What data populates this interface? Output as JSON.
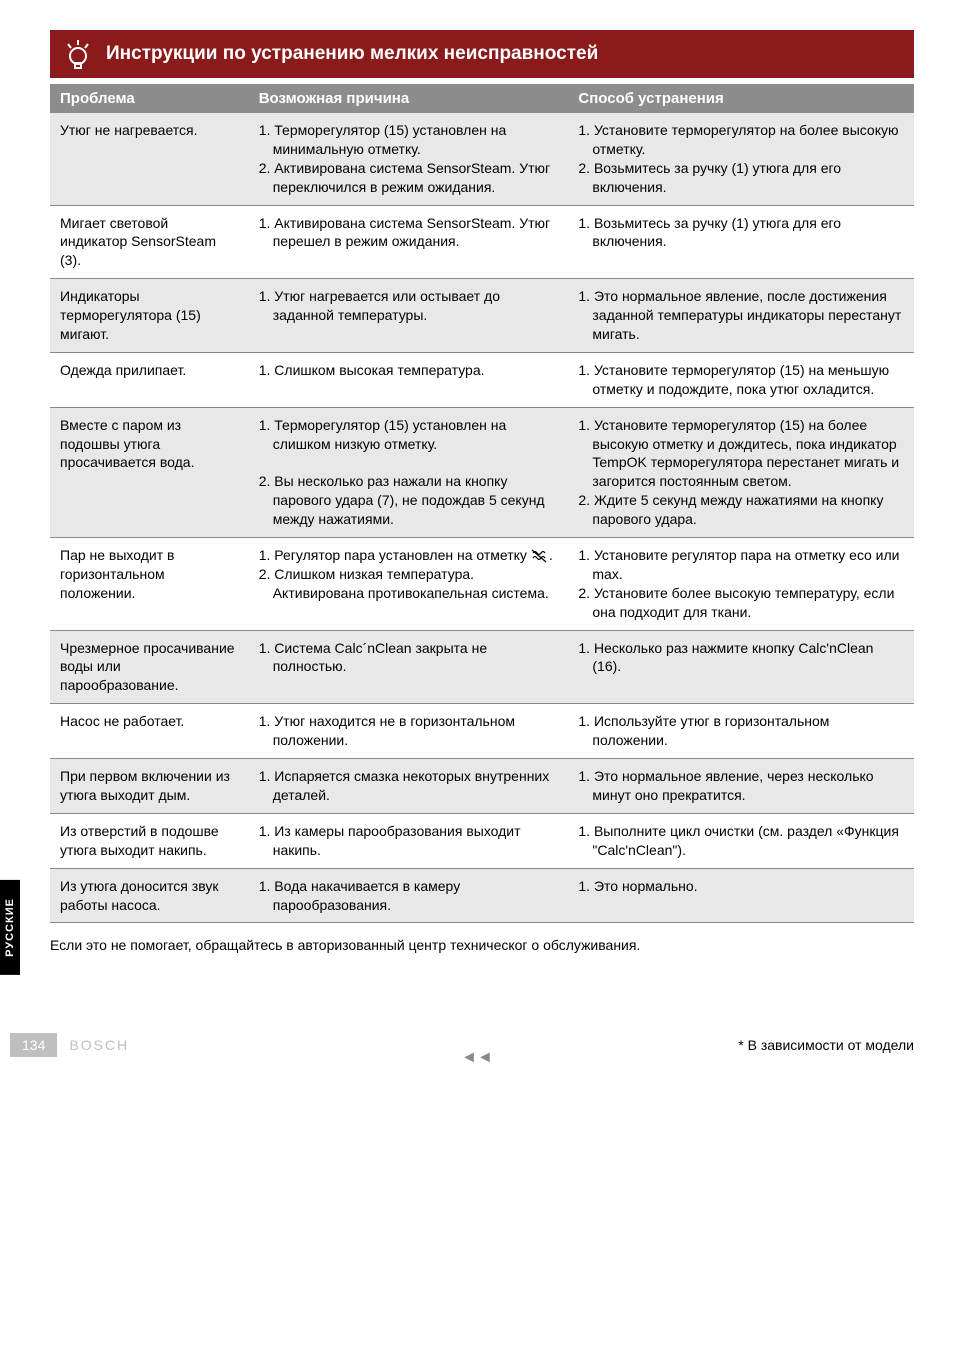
{
  "header": {
    "title": "Инструкции по устранению мелких неисправностей"
  },
  "table": {
    "headers": {
      "problem": "Проблема",
      "cause": "Возможная причина",
      "solution": "Способ устранения"
    },
    "rows": [
      {
        "shaded": true,
        "problem": "Утюг не нагревается.",
        "cause": "1. Терморегулятор (15) установлен на минимальную отметку.\n2. Активирована система SensorSteam. Утюг переключился в режим ожидания.",
        "solution": "1. Установите терморегулятор на более высокую отметку.\n2. Возьмитесь за ручку (1) утюга для его включения."
      },
      {
        "shaded": false,
        "problem": "Мигает световой индикатор SensorSteam (3).",
        "cause": "1. Активирована система SensorSteam. Утюг перешел в режим ожидания.",
        "solution": "1. Возьмитесь за ручку (1) утюга для его включения."
      },
      {
        "shaded": true,
        "problem": "Индикаторы терморегулятора (15) мигают.",
        "cause": "1. Утюг нагревается или остывает до заданной температуры.",
        "solution": "1. Это нормальное явление, после достижения заданной температуры индикаторы перестанут мигать."
      },
      {
        "shaded": false,
        "problem": "Одежда прилипает.",
        "cause": "1. Слишком высокая температура.",
        "solution": "1. Установите терморегулятор (15) на меньшую отметку и подождите, пока утюг охладится."
      },
      {
        "shaded": true,
        "problem": "Вместе с паром из подошвы утюга просачивается вода.",
        "cause": "1. Терморегулятор (15) установлен на слишком низкую отметку.\n\n2. Вы несколько раз нажали на кнопку парового удара (7), не подождав 5 секунд между нажатиями.",
        "solution": "1. Установите терморегулятор (15) на более высокую отметку и дождитесь, пока индикатор TempOK терморегулятора перестанет мигать и загорится постоянным светом.\n2. Ждите 5 секунд между нажатиями на кнопку парового удара."
      },
      {
        "shaded": false,
        "problem": "Пар не выходит в горизонтальном положении.",
        "cause": "1. Регулятор пара установлен на отметку [steam].\n2. Слишком низкая температура. Активирована противокапельная система.",
        "solution": "1. Установите регулятор пара на отметку eco или max.\n2. Установите более высокую температуру, если она подходит для ткани."
      },
      {
        "shaded": true,
        "problem": "Чрезмерное просачивание воды или парообразование.",
        "cause": "1. Система Calc´nClean закрыта не полностью.",
        "solution": "1. Несколько раз нажмите кнопку Calc'nClean (16)."
      },
      {
        "shaded": false,
        "problem": "Насос не работает.",
        "cause": "1. Утюг находится не в горизонтальном положении.",
        "solution": "1. Используйте утюг в горизонтальном положении."
      },
      {
        "shaded": true,
        "problem": "При первом включении из утюга выходит дым.",
        "cause": "1. Испаряется смазка некоторых внутренних деталей.",
        "solution": "1. Это нормальное явление, через несколько минут оно прекратится."
      },
      {
        "shaded": false,
        "problem": "Из отверстий в подошве утюга выходит накипь.",
        "cause": "1. Из камеры парообразования выходит накипь.",
        "solution": "1. Выполните цикл очистки (см. раздел «Функция \"Calc'nClean\")."
      },
      {
        "shaded": true,
        "problem": "Из утюга доносится звук работы насоса.",
        "cause": "1. Вода накачивается в камеру парообразования.",
        "solution": "1. Это нормально."
      }
    ]
  },
  "footerText": "Если это не помогает, обращайтесь в авторизованный центр техническог о обслуживания.",
  "sidebar": "РУССКИЕ",
  "pageNumber": "134",
  "brand": "BOSCH",
  "modelNote": "* В зависимости от модели",
  "navArrows": "◄◄"
}
